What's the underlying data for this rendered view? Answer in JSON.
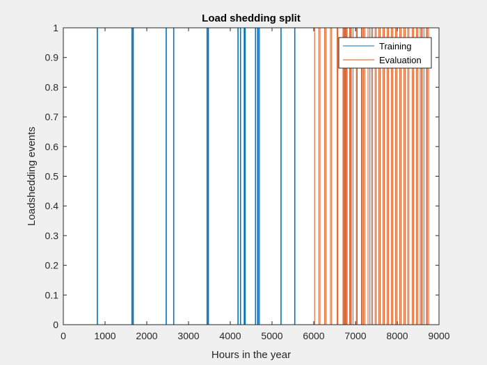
{
  "chart_data": {
    "type": "line",
    "title": "Load shedding split",
    "xlabel": "Hours in the year",
    "ylabel": "Loadshedding events",
    "xlim": [
      0,
      9000
    ],
    "ylim": [
      0,
      1
    ],
    "xticks": [
      0,
      1000,
      2000,
      3000,
      4000,
      5000,
      6000,
      7000,
      8000,
      9000
    ],
    "xtick_labels": [
      "0",
      "1000",
      "2000",
      "3000",
      "4000",
      "5000",
      "6000",
      "7000",
      "8000",
      "9000"
    ],
    "yticks": [
      0,
      0.1,
      0.2,
      0.3,
      0.4,
      0.5,
      0.6,
      0.7,
      0.8,
      0.9,
      1
    ],
    "ytick_labels": [
      "0",
      "0.1",
      "0.2",
      "0.3",
      "0.4",
      "0.5",
      "0.6",
      "0.7",
      "0.8",
      "0.9",
      "1"
    ],
    "grid": false,
    "legend_location": "top-right",
    "series": [
      {
        "name": "Training",
        "color": "#0072BD",
        "x_range": [
          0,
          6000
        ],
        "events": [
          [
            810,
            820
          ],
          [
            1640,
            1650
          ],
          [
            1670,
            1680
          ],
          [
            2460,
            2470
          ],
          [
            2640,
            2650
          ],
          [
            3440,
            3450
          ],
          [
            3470,
            3480
          ],
          [
            4180,
            4190
          ],
          [
            4240,
            4250
          ],
          [
            4330,
            4340
          ],
          [
            4350,
            4360
          ],
          [
            4600,
            4610
          ],
          [
            4650,
            4660
          ],
          [
            4680,
            4700
          ],
          [
            5210,
            5220
          ],
          [
            5540,
            5550
          ]
        ]
      },
      {
        "name": "Evaluation",
        "color": "#D95319",
        "x_range": [
          6000,
          8760
        ],
        "events": [
          [
            6020,
            6120
          ],
          [
            6150,
            6260
          ],
          [
            6290,
            6400
          ],
          [
            6430,
            6560
          ],
          [
            6580,
            6700
          ],
          [
            6720,
            6740
          ],
          [
            6760,
            6780
          ],
          [
            6800,
            6860
          ],
          [
            6880,
            6900
          ],
          [
            6940,
            7020
          ],
          [
            7040,
            7140
          ],
          [
            7160,
            7190
          ],
          [
            7220,
            7300
          ],
          [
            7340,
            7380
          ],
          [
            7410,
            7470
          ],
          [
            7500,
            7560
          ],
          [
            7590,
            7660
          ],
          [
            7690,
            7760
          ],
          [
            7790,
            7860
          ],
          [
            7890,
            7960
          ],
          [
            7990,
            8060
          ],
          [
            8090,
            8160
          ],
          [
            8190,
            8250
          ],
          [
            8280,
            8360
          ],
          [
            8390,
            8460
          ],
          [
            8490,
            8550
          ],
          [
            8580,
            8600
          ],
          [
            8640,
            8700
          ],
          [
            8720,
            8750
          ]
        ]
      }
    ]
  }
}
